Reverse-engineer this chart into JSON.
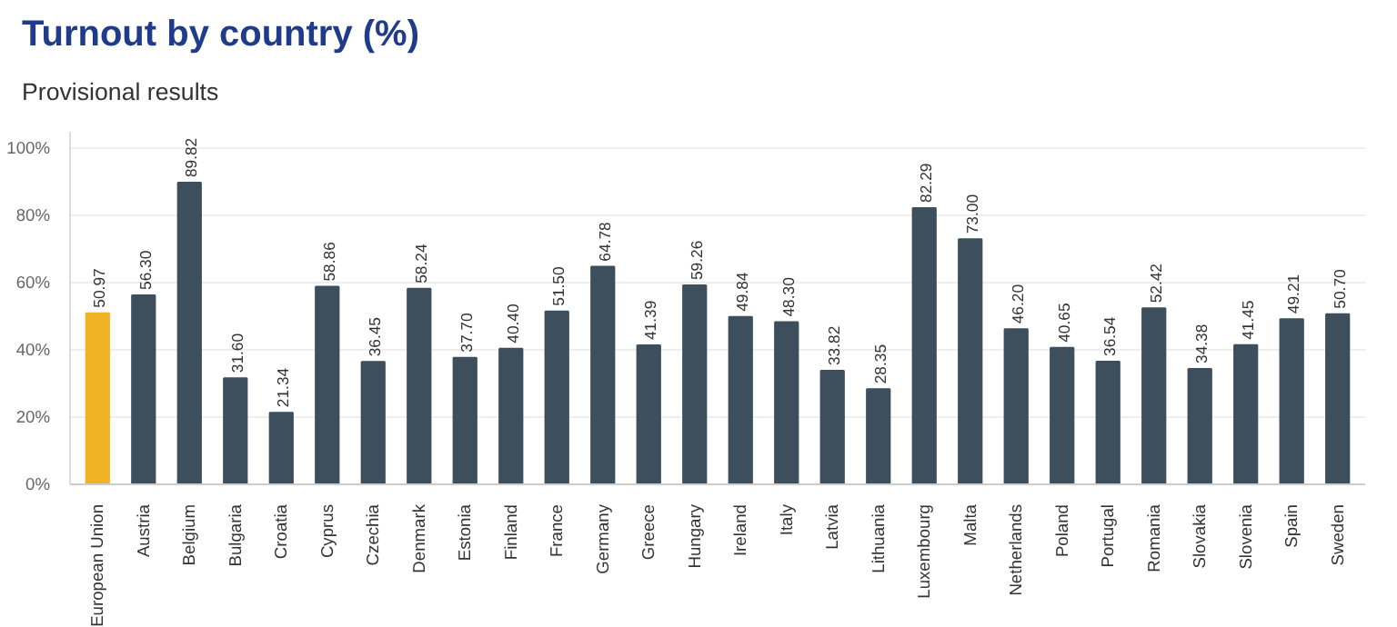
{
  "chart_data": {
    "type": "bar",
    "title": "Turnout by country (%)",
    "subtitle": "Provisional results",
    "categories": [
      "European Union",
      "Austria",
      "Belgium",
      "Bulgaria",
      "Croatia",
      "Cyprus",
      "Czechia",
      "Denmark",
      "Estonia",
      "Finland",
      "France",
      "Germany",
      "Greece",
      "Hungary",
      "Ireland",
      "Italy",
      "Latvia",
      "Lithuania",
      "Luxembourg",
      "Malta",
      "Netherlands",
      "Poland",
      "Portugal",
      "Romania",
      "Slovakia",
      "Slovenia",
      "Spain",
      "Sweden"
    ],
    "values": [
      50.97,
      56.3,
      89.82,
      31.6,
      21.34,
      58.86,
      36.45,
      58.24,
      37.7,
      40.4,
      51.5,
      64.78,
      41.39,
      59.26,
      49.84,
      48.3,
      33.82,
      28.35,
      82.29,
      73.0,
      46.2,
      40.65,
      36.54,
      52.42,
      34.38,
      41.45,
      49.21,
      50.7
    ],
    "value_labels": [
      "50.97",
      "56.30",
      "89.82",
      "31.60",
      "21.34",
      "58.86",
      "36.45",
      "58.24",
      "37.70",
      "40.40",
      "51.50",
      "64.78",
      "41.39",
      "59.26",
      "49.84",
      "48.30",
      "33.82",
      "28.35",
      "82.29",
      "73.00",
      "46.20",
      "40.65",
      "36.54",
      "52.42",
      "34.38",
      "41.45",
      "49.21",
      "50.70"
    ],
    "colors": [
      "#f0b323",
      "#3d4f5c",
      "#3d4f5c",
      "#3d4f5c",
      "#3d4f5c",
      "#3d4f5c",
      "#3d4f5c",
      "#3d4f5c",
      "#3d4f5c",
      "#3d4f5c",
      "#3d4f5c",
      "#3d4f5c",
      "#3d4f5c",
      "#3d4f5c",
      "#3d4f5c",
      "#3d4f5c",
      "#3d4f5c",
      "#3d4f5c",
      "#3d4f5c",
      "#3d4f5c",
      "#3d4f5c",
      "#3d4f5c",
      "#3d4f5c",
      "#3d4f5c",
      "#3d4f5c",
      "#3d4f5c",
      "#3d4f5c",
      "#3d4f5c"
    ],
    "ylim": [
      0,
      105
    ],
    "yticks": [
      {
        "value": 0,
        "label": "0%"
      },
      {
        "value": 20,
        "label": "20%"
      },
      {
        "value": 40,
        "label": "40%"
      },
      {
        "value": 60,
        "label": "60%"
      },
      {
        "value": 80,
        "label": "80%"
      },
      {
        "value": 100,
        "label": "100%"
      }
    ],
    "grid": "y"
  }
}
